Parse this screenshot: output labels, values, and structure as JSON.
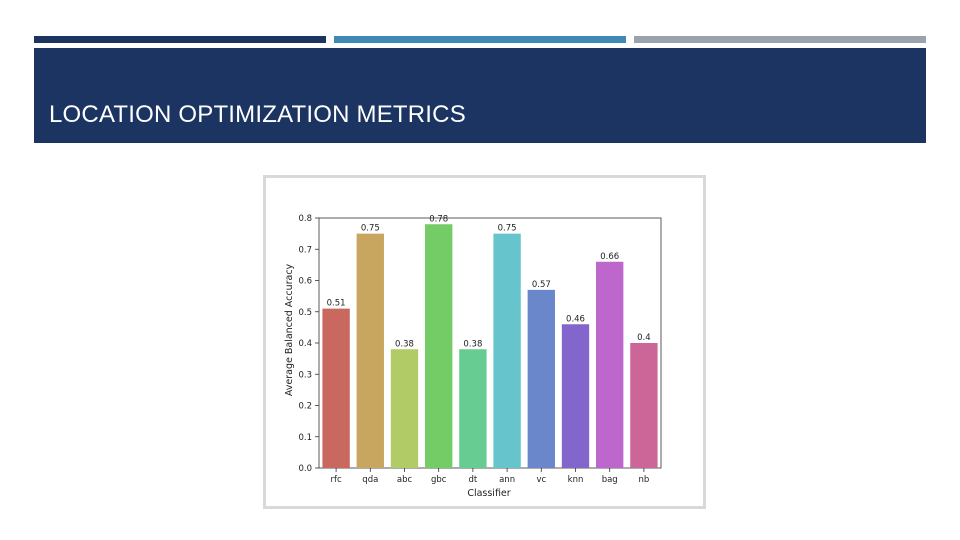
{
  "slide": {
    "title": "LOCATION OPTIMIZATION METRICS",
    "accent_bars": [
      {
        "color": "#1b3462"
      },
      {
        "color": "#3e8ab5"
      },
      {
        "color": "#9aa3ab"
      }
    ],
    "header_color": "#1b3462"
  },
  "chart_data": {
    "type": "bar",
    "xlabel": "Classifier",
    "ylabel": "Average Balanced Accuracy",
    "categories": [
      "rfc",
      "qda",
      "abc",
      "gbc",
      "dt",
      "ann",
      "vc",
      "knn",
      "bag",
      "nb"
    ],
    "values": [
      0.51,
      0.75,
      0.38,
      0.78,
      0.38,
      0.75,
      0.57,
      0.46,
      0.66,
      0.4
    ],
    "value_labels": [
      "0.51",
      "0.75",
      "0.38",
      "0.78",
      "0.38",
      "0.75",
      "0.57",
      "0.46",
      "0.66",
      "0.4"
    ],
    "colors": [
      "#c9685f",
      "#c9a660",
      "#b1cc66",
      "#74cc66",
      "#66cc91",
      "#66c4cc",
      "#6a87cc",
      "#8266cc",
      "#bd66cc",
      "#cc6699"
    ],
    "ylim": [
      0,
      0.8
    ],
    "yticks": [
      "0.0",
      "0.1",
      "0.2",
      "0.3",
      "0.4",
      "0.5",
      "0.6",
      "0.7",
      "0.8"
    ],
    "grid": false,
    "legend": "none"
  }
}
